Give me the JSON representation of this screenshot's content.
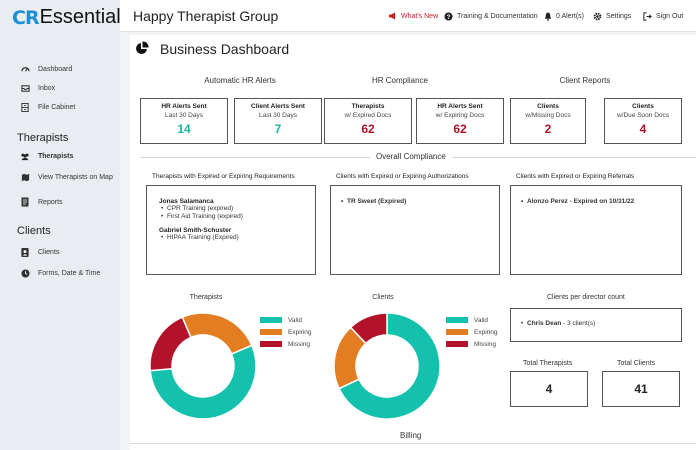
{
  "logo": {
    "mark": "CR",
    "text": "Essentials"
  },
  "sidebar": {
    "items": [
      {
        "label": "Dashboard",
        "icon": "speedometer-icon"
      },
      {
        "label": "Inbox",
        "icon": "inbox-icon"
      },
      {
        "label": "File Cabinet",
        "icon": "cabinet-icon"
      }
    ],
    "therapists_heading": "Therapists",
    "therapist_items": [
      {
        "label": "Therapists",
        "icon": "users-icon"
      },
      {
        "label": "View Therapists on Map",
        "icon": "map-icon"
      },
      {
        "label": "Reports",
        "icon": "report-icon"
      }
    ],
    "clients_heading": "Clients",
    "client_items": [
      {
        "label": "Clients",
        "icon": "client-icon"
      },
      {
        "label": "Forms, Date & Time",
        "icon": "clock-icon"
      }
    ]
  },
  "header": {
    "title": "Happy Therapist Group",
    "whats_new": "What's New",
    "training": "Training & Documentation",
    "alerts": "0 Alert(s)",
    "settings": "Settings",
    "sign_out": "Sign Out"
  },
  "dashboard": {
    "title": "Business Dashboard",
    "hr_alerts_title": "Automatic HR Alerts",
    "hr_compliance_title": "HR Compliance",
    "client_reports_title": "Client Reports",
    "cards": [
      {
        "title": "HR Alerts Sent",
        "sub": "Last 30 Days",
        "value": "14",
        "color": "green"
      },
      {
        "title": "Client Alerts Sent",
        "sub": "Last 30 Days",
        "value": "7",
        "color": "green"
      },
      {
        "title": "Therapists",
        "sub": "w/ Expired Docs",
        "value": "62",
        "color": "red"
      },
      {
        "title": "HR Alerts Sent",
        "sub": "w/ Expiring Docs",
        "value": "62",
        "color": "red"
      },
      {
        "title": "Clients",
        "sub": "w/Missing Docs",
        "value": "2",
        "color": "red"
      },
      {
        "title": "Clients",
        "sub": "w/Due Soon Docs",
        "value": "4",
        "color": "red"
      }
    ],
    "overall_title": "Overall Compliance",
    "therapists_box": {
      "title": "Therapists with Expired or Expiring Requirements",
      "people": [
        {
          "name": "Jonas Salamanca",
          "items": [
            "CPR Training (expired)",
            "First Aid Training (expired)"
          ]
        },
        {
          "name": "Gabriel Smith-Schuster",
          "items": [
            "HIPAA Training (Expired)"
          ]
        }
      ]
    },
    "auth_box": {
      "title": "Clients with Expired or Expiring Authorizations",
      "items": [
        "TR Sweet (Expired)"
      ]
    },
    "referral_box": {
      "title": "Clients with Expired or Expiring Referrals",
      "items": [
        "Alonzo Perez - Expired on 10/31/22"
      ]
    },
    "therapists_chart_title": "Therapists",
    "clients_chart_title": "Clients",
    "legend": [
      "Valid",
      "Expiring",
      "Missing"
    ],
    "director": {
      "title": "Clients per director count",
      "name": "Chris Dean",
      "count_text": " - 3 client(s)"
    },
    "totals": {
      "therapists_label": "Total Therapists",
      "therapists_value": "4",
      "clients_label": "Total Clients",
      "clients_value": "41"
    },
    "billing": "Billing"
  },
  "colors": {
    "valid": "#14c1ad",
    "expiring": "#e37d22",
    "missing": "#b3122b",
    "brand": "#1a8fd6"
  },
  "chart_data": [
    {
      "type": "pie",
      "title": "Therapists",
      "labels": [
        "Valid",
        "Expiring",
        "Missing"
      ],
      "values": [
        55,
        25,
        20
      ]
    },
    {
      "type": "pie",
      "title": "Clients",
      "labels": [
        "Valid",
        "Expiring",
        "Missing"
      ],
      "values": [
        68,
        20,
        12
      ]
    }
  ]
}
